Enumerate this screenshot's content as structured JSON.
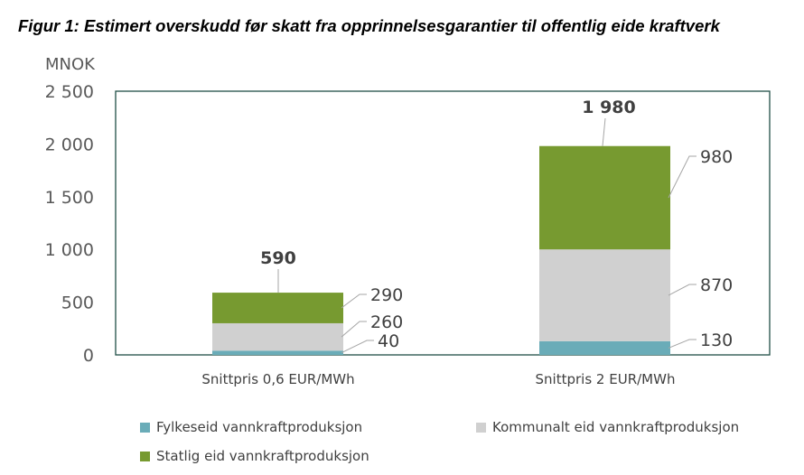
{
  "title": "Figur 1: Estimert overskudd før skatt fra opprinnelsesgarantier til offentlig eide kraftverk",
  "chart_data": {
    "type": "bar",
    "stacked": true,
    "ylabel": "MNOK",
    "ylim": [
      0,
      2500
    ],
    "yticks": [
      0,
      500,
      1000,
      1500,
      2000,
      2500
    ],
    "ytick_labels": [
      "0",
      "500",
      "1 000",
      "1 500",
      "2 000",
      "2 500"
    ],
    "categories": [
      "Snittpris 0,6 EUR/MWh",
      "Snittpris 2 EUR/MWh"
    ],
    "series": [
      {
        "name": "Fylkeseid vannkraftproduksjon",
        "color": "#6aacb8",
        "values": [
          40,
          130
        ],
        "labels": [
          "40",
          "130"
        ]
      },
      {
        "name": "Kommunalt eid vannkraftproduksjon",
        "color": "#d0d0d0",
        "values": [
          260,
          870
        ],
        "labels": [
          "260",
          "870"
        ]
      },
      {
        "name": "Statlig eid vannkraftproduksjon",
        "color": "#779a30",
        "values": [
          290,
          980
        ],
        "labels": [
          "290",
          "980"
        ]
      }
    ],
    "totals": [
      590,
      1980
    ],
    "total_labels": [
      "590",
      "1 980"
    ],
    "grid": false,
    "legend_position": "bottom"
  }
}
